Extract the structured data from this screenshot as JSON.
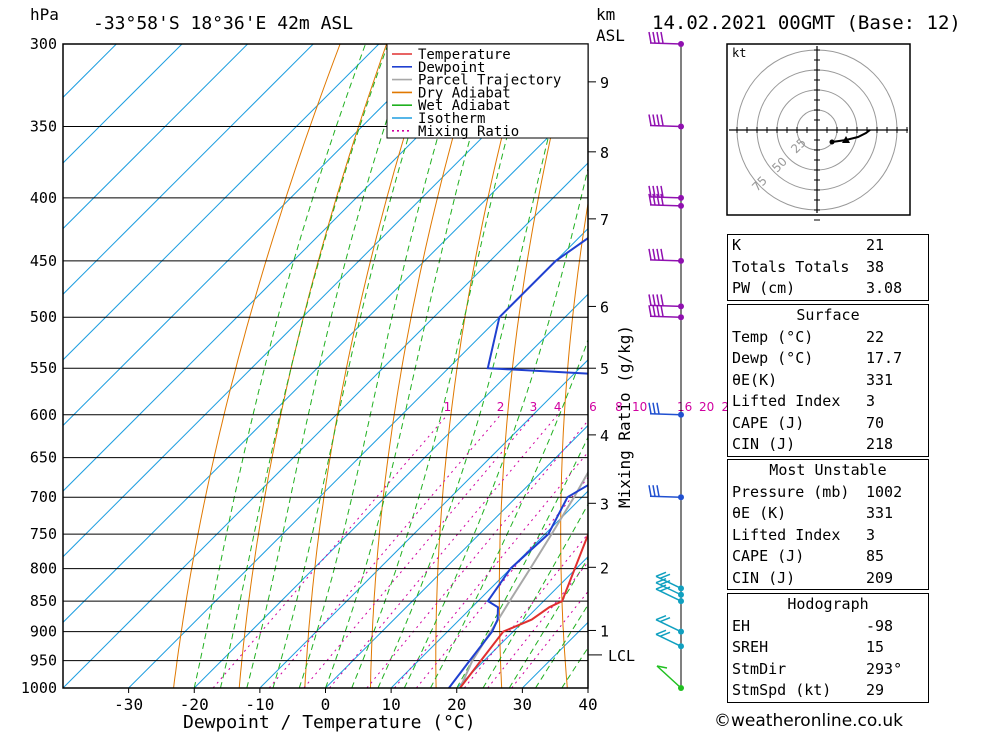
{
  "header": {
    "hpa_label": "hPa",
    "location": "-33°58'S  18°36'E  42m  ASL",
    "km_label": "km",
    "asl_label": "ASL",
    "datetime": "14.02.2021  00GMT  (Base: 12)"
  },
  "hodograph": {
    "unit": "kt",
    "rings": [
      "25",
      "50",
      "75"
    ]
  },
  "indices": {
    "k": {
      "label": "K",
      "value": "21"
    },
    "tt": {
      "label": "Totals Totals",
      "value": "38"
    },
    "pw": {
      "label": "PW (cm)",
      "value": "3.08"
    }
  },
  "surface": {
    "title": "Surface",
    "rows": [
      {
        "label": "Temp (°C)",
        "value": "22"
      },
      {
        "label": "Dewp (°C)",
        "value": "17.7"
      },
      {
        "label": "θE(K)",
        "value": "331"
      },
      {
        "label": "Lifted Index",
        "value": "3"
      },
      {
        "label": "CAPE (J)",
        "value": "70"
      },
      {
        "label": "CIN (J)",
        "value": "218"
      }
    ]
  },
  "most_unstable": {
    "title": "Most Unstable",
    "rows": [
      {
        "label": "Pressure (mb)",
        "value": "1002"
      },
      {
        "label": "θE (K)",
        "value": "331"
      },
      {
        "label": "Lifted Index",
        "value": "3"
      },
      {
        "label": "CAPE (J)",
        "value": "85"
      },
      {
        "label": "CIN (J)",
        "value": "209"
      }
    ]
  },
  "hodo_stats": {
    "title": "Hodograph",
    "rows": [
      {
        "label": "EH",
        "value": "-98"
      },
      {
        "label": "SREH",
        "value": "15"
      },
      {
        "label": "StmDir",
        "value": "293°"
      },
      {
        "label": "StmSpd (kt)",
        "value": "29"
      }
    ]
  },
  "copyright": "©weatheronline.co.uk",
  "colors": {
    "temperature": "#e03030",
    "dewpoint": "#2040d0",
    "parcel": "#a8a8a8",
    "dry_adiabat": "#e07800",
    "wet_adiabat": "#20b020",
    "isotherm": "#1e9ee0",
    "mixing_ratio": "#d000a0",
    "wind_upper": "#9010b0",
    "wind_mid": "#2050d0",
    "wind_low": "#10a0c0",
    "wind_sfc": "#20c020"
  },
  "chart_data": {
    "type": "line",
    "title": "-33°58'S  18°36'E  42m  ASL",
    "xlabel": "Dewpoint / Temperature (°C)",
    "ylabel": "hPa",
    "y2label": "Mixing Ratio (g/kg)",
    "xlim": [
      -40,
      40
    ],
    "ylim": [
      1000,
      300
    ],
    "y_scale": "log",
    "x_ticks": [
      -30,
      -20,
      -10,
      0,
      10,
      20,
      30,
      40
    ],
    "pressure_levels": [
      300,
      350,
      400,
      450,
      500,
      550,
      600,
      650,
      700,
      750,
      800,
      850,
      900,
      950,
      1000
    ],
    "km_ticks": [
      {
        "label": "9",
        "p": 322
      },
      {
        "label": "8",
        "p": 367
      },
      {
        "label": "7",
        "p": 416
      },
      {
        "label": "6",
        "p": 490
      },
      {
        "label": "5",
        "p": 550
      },
      {
        "label": "4",
        "p": 623
      },
      {
        "label": "3",
        "p": 708
      },
      {
        "label": "2",
        "p": 798
      },
      {
        "label": "1",
        "p": 898
      }
    ],
    "lcl": {
      "label": "LCL",
      "p": 940
    },
    "mixing_ratio_labels": [
      "1",
      "2",
      "3",
      "4",
      "6",
      "8",
      "10",
      "16",
      "20",
      "25"
    ],
    "legend": [
      "Temperature",
      "Dewpoint",
      "Parcel Trajectory",
      "Dry Adiabat",
      "Wet Adiabat",
      "Isotherm",
      "Mixing Ratio"
    ],
    "legend_position": "top-center",
    "series": [
      {
        "name": "Temperature",
        "points": [
          [
            1000,
            20.5
          ],
          [
            950,
            19.5
          ],
          [
            900,
            18.5
          ],
          [
            880,
            21
          ],
          [
            860,
            21.8
          ],
          [
            850,
            22.8
          ],
          [
            800,
            19.8
          ],
          [
            750,
            16.6
          ],
          [
            700,
            12.8
          ],
          [
            650,
            9.2
          ],
          [
            600,
            6.3
          ],
          [
            560,
            1.8
          ],
          [
            550,
            6.2
          ],
          [
            525,
            4.8
          ],
          [
            500,
            2.8
          ],
          [
            450,
            -1.6
          ],
          [
            400,
            -5.5
          ],
          [
            380,
            -6.3
          ],
          [
            350,
            -9.8
          ],
          [
            320,
            -13
          ],
          [
            300,
            -14.5
          ]
        ]
      },
      {
        "name": "Dewpoint",
        "points": [
          [
            1000,
            18.8
          ],
          [
            950,
            17.8
          ],
          [
            900,
            16.8
          ],
          [
            880,
            15.8
          ],
          [
            860,
            14
          ],
          [
            850,
            11.5
          ],
          [
            800,
            10
          ],
          [
            750,
            10.5
          ],
          [
            700,
            7.8
          ],
          [
            650,
            12
          ],
          [
            640,
            7
          ],
          [
            600,
            5.5
          ],
          [
            570,
            5.5
          ],
          [
            560,
            4.8
          ],
          [
            550,
            -24
          ],
          [
            500,
            -30
          ],
          [
            450,
            -30
          ],
          [
            400,
            -26
          ],
          [
            370,
            -33
          ],
          [
            365,
            -40
          ],
          [
            350,
            -14
          ],
          [
            340,
            -7
          ],
          [
            320,
            -9
          ],
          [
            305,
            -16
          ],
          [
            300,
            -16
          ]
        ]
      },
      {
        "name": "Parcel Trajectory",
        "points": [
          [
            1000,
            20.5
          ],
          [
            950,
            18.2
          ],
          [
            900,
            16.6
          ],
          [
            850,
            14.8
          ],
          [
            800,
            13
          ],
          [
            750,
            11
          ],
          [
            700,
            8.8
          ],
          [
            650,
            6.2
          ],
          [
            600,
            3.2
          ],
          [
            550,
            0
          ],
          [
            500,
            -3.6
          ],
          [
            450,
            -7.8
          ],
          [
            400,
            -12.8
          ],
          [
            350,
            -18.8
          ],
          [
            300,
            -25.8
          ]
        ]
      }
    ],
    "wind_barbs": [
      {
        "p": 300,
        "color": "upper"
      },
      {
        "p": 350,
        "color": "upper"
      },
      {
        "p": 400,
        "color": "upper"
      },
      {
        "p": 406,
        "color": "upper"
      },
      {
        "p": 450,
        "color": "upper"
      },
      {
        "p": 490,
        "color": "upper"
      },
      {
        "p": 500,
        "color": "upper"
      },
      {
        "p": 600,
        "color": "mid"
      },
      {
        "p": 700,
        "color": "mid"
      },
      {
        "p": 830,
        "color": "low"
      },
      {
        "p": 840,
        "color": "low"
      },
      {
        "p": 850,
        "color": "low"
      },
      {
        "p": 900,
        "color": "low"
      },
      {
        "p": 925,
        "color": "low"
      },
      {
        "p": 1000,
        "color": "sfc"
      }
    ]
  }
}
